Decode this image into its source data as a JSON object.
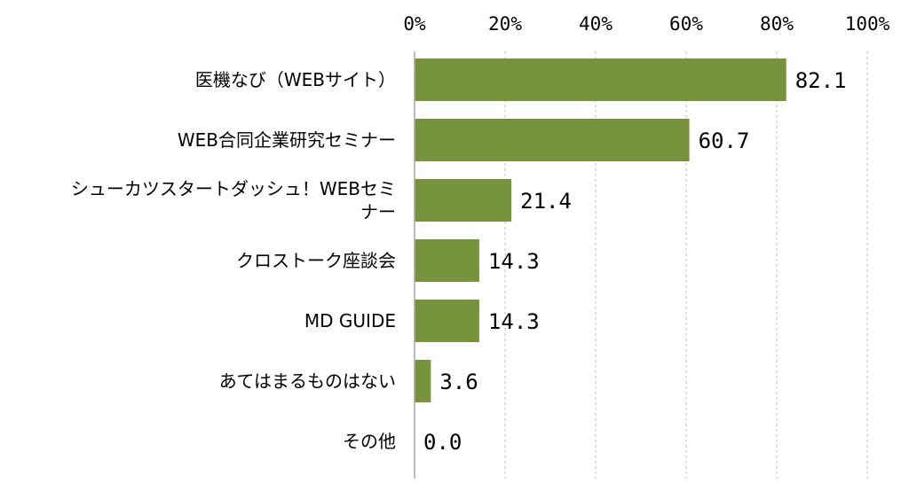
{
  "chart_data": {
    "type": "bar",
    "orientation": "horizontal",
    "categories": [
      "医機なび（WEBサイト）",
      "WEB合同企業研究セミナー",
      "シューカツスタートダッシュ！WEBセミナー",
      "クロストーク座談会",
      "MD GUIDE",
      "あてはまるものはない",
      "その他"
    ],
    "category_lines": [
      [
        "医機なび（WEBサイト）"
      ],
      [
        "WEB合同企業研究セミナー"
      ],
      [
        "シューカツスタートダッシュ！WEBセミ",
        "ナー"
      ],
      [
        "クロストーク座談会"
      ],
      [
        "MD GUIDE"
      ],
      [
        "あてはまるものはない"
      ],
      [
        "その他"
      ]
    ],
    "values": [
      82.1,
      60.7,
      21.4,
      14.3,
      14.3,
      3.6,
      0.0
    ],
    "value_labels": [
      "82.1",
      "60.7",
      "21.4",
      "14.3",
      "14.3",
      "3.6",
      "0.0"
    ],
    "x_ticks": [
      "0%",
      "20%",
      "40%",
      "60%",
      "80%",
      "100%"
    ],
    "xlim": [
      0,
      100
    ],
    "bar_color": "#77933c",
    "grid": true,
    "axis_position": "top"
  }
}
